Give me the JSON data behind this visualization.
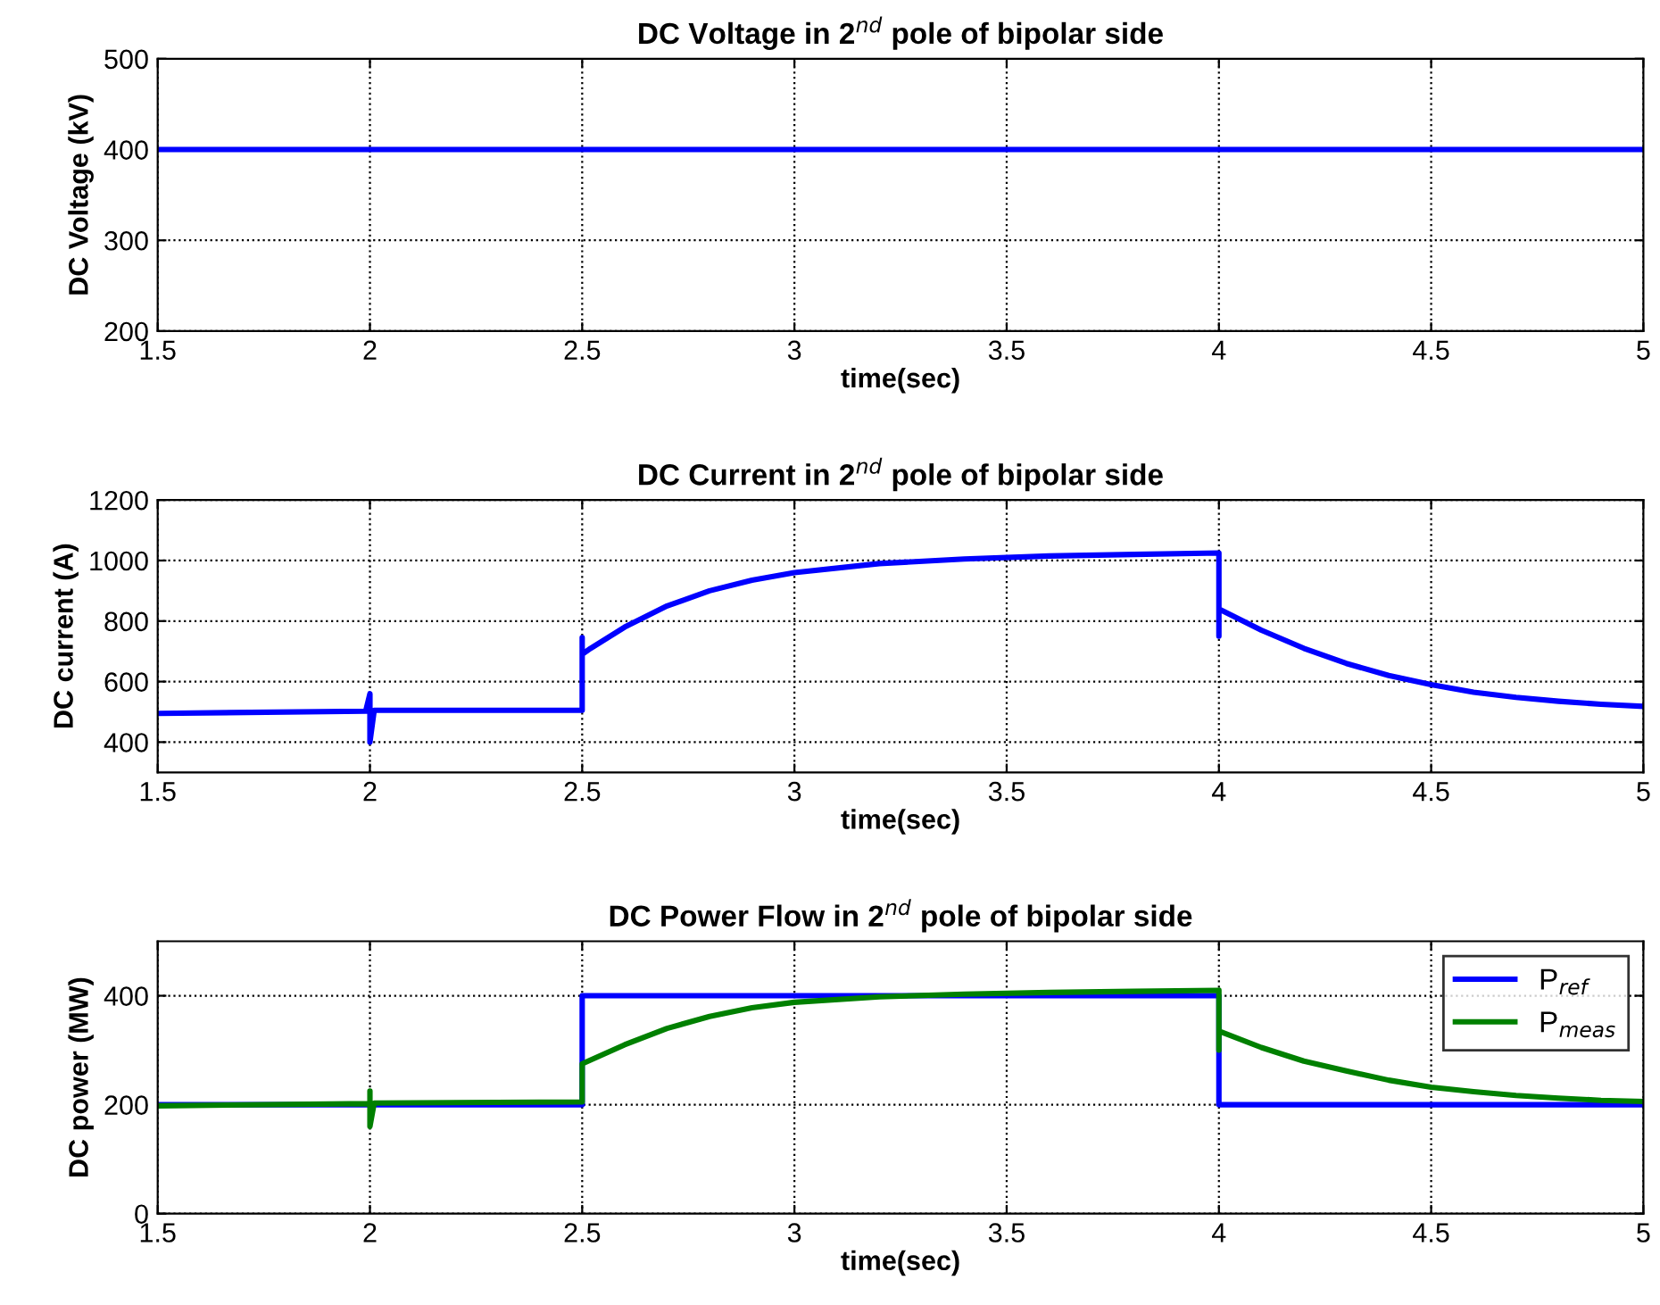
{
  "chart_data": [
    {
      "type": "line",
      "title": "DC Voltage in 2$^{nd}$ pole of bipolar side",
      "xlabel": "time(sec)",
      "ylabel": "DC Voltage (kV)",
      "xlim": [
        1.5,
        5
      ],
      "xticks": [
        1.5,
        2,
        2.5,
        3,
        3.5,
        4,
        4.5,
        5
      ],
      "ylim": [
        200,
        500
      ],
      "yticks": [
        200,
        300,
        400,
        500
      ],
      "grid": true,
      "series": [
        {
          "color": "#0000ff",
          "x": [
            1.5,
            5
          ],
          "values": [
            400,
            400
          ]
        }
      ]
    },
    {
      "type": "line",
      "title": "DC Current in 2$^{nd}$ pole of bipolar side",
      "xlabel": "time(sec)",
      "ylabel": "DC current (A)",
      "xlim": [
        1.5,
        5
      ],
      "xticks": [
        1.5,
        2,
        2.5,
        3,
        3.5,
        4,
        4.5,
        5
      ],
      "ylim": [
        300,
        1200
      ],
      "yticks": [
        400,
        600,
        800,
        1000,
        1200
      ],
      "grid": true,
      "series": [
        {
          "color": "#0000ff",
          "x": [
            1.5,
            1.99,
            2.0,
            2.0,
            2.01,
            2.5,
            2.5,
            2.5,
            2.52,
            2.6,
            2.7,
            2.8,
            2.9,
            3.0,
            3.2,
            3.4,
            3.6,
            3.8,
            4.0,
            4.0,
            4.0,
            4.1,
            4.2,
            4.3,
            4.4,
            4.5,
            4.6,
            4.7,
            4.8,
            4.9,
            5.0
          ],
          "values": [
            495,
            502,
            560,
            400,
            505,
            505,
            745,
            690,
            710,
            780,
            850,
            900,
            935,
            960,
            990,
            1005,
            1015,
            1020,
            1025,
            750,
            840,
            770,
            710,
            660,
            620,
            590,
            565,
            548,
            535,
            525,
            518
          ]
        }
      ]
    },
    {
      "type": "line",
      "title": "DC Power Flow in 2$^{nd}$ pole of bipolar side",
      "xlabel": "time(sec)",
      "ylabel": "DC power (MW)",
      "xlim": [
        1.5,
        5
      ],
      "xticks": [
        1.5,
        2,
        2.5,
        3,
        3.5,
        4,
        4.5,
        5
      ],
      "ylim": [
        0,
        500
      ],
      "yticks": [
        0,
        200,
        400
      ],
      "grid": true,
      "legend": "top right",
      "series": [
        {
          "name": "P$_{ref}$",
          "color": "#0000ff",
          "x": [
            1.5,
            2.5,
            2.5,
            4.0,
            4.0,
            5.0
          ],
          "values": [
            200,
            200,
            400,
            400,
            200,
            200
          ]
        },
        {
          "name": "P$_{meas}$",
          "color": "#008000",
          "x": [
            1.5,
            2.0,
            2.0,
            2.0,
            2.01,
            2.5,
            2.5,
            2.5,
            2.6,
            2.7,
            2.8,
            2.9,
            3.0,
            3.2,
            3.4,
            3.6,
            3.8,
            4.0,
            4.0,
            4.0,
            4.1,
            4.2,
            4.3,
            4.4,
            4.5,
            4.6,
            4.7,
            4.8,
            4.9,
            5.0
          ],
          "values": [
            198,
            202,
            225,
            160,
            203,
            205,
            260,
            275,
            310,
            340,
            362,
            378,
            388,
            398,
            403,
            406,
            408,
            410,
            300,
            335,
            305,
            280,
            262,
            245,
            232,
            224,
            217,
            212,
            208,
            206
          ]
        }
      ]
    }
  ]
}
